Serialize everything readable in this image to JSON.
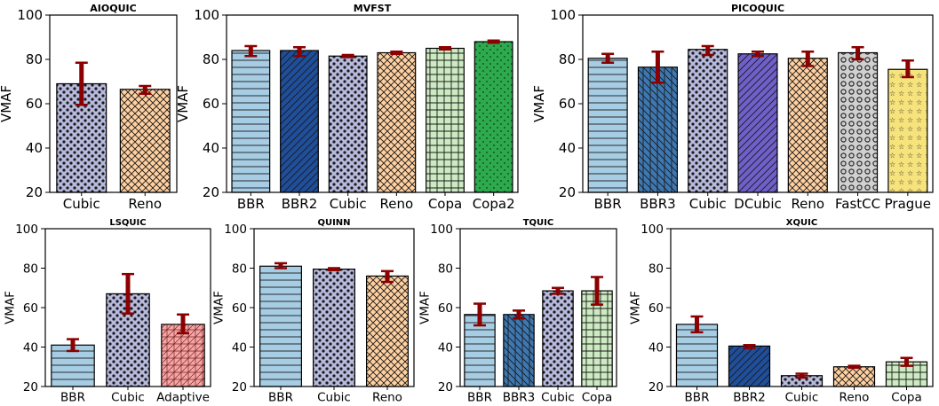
{
  "chart_data": [
    {
      "type": "bar",
      "title": "AIOQUIC",
      "ylabel": "VMAF",
      "ylim": [
        20,
        100
      ],
      "yticks": [
        20,
        40,
        60,
        80,
        100
      ],
      "grid": false,
      "categories": [
        "Cubic",
        "Reno"
      ],
      "values": [
        69,
        66.5
      ],
      "err_low": [
        59.5,
        64.5
      ],
      "err_high": [
        78.5,
        68
      ]
    },
    {
      "type": "bar",
      "title": "MVFST",
      "ylabel": "VMAF",
      "ylim": [
        20,
        100
      ],
      "yticks": [
        20,
        40,
        60,
        80,
        100
      ],
      "grid": false,
      "categories": [
        "BBR",
        "BBR2",
        "Cubic",
        "Reno",
        "Copa",
        "Copa2"
      ],
      "values": [
        84,
        84,
        81.5,
        83,
        85,
        88
      ],
      "err_low": [
        81.5,
        81.5,
        81,
        82.5,
        84.5,
        87.5
      ],
      "err_high": [
        86,
        85.5,
        82,
        83.5,
        85.5,
        88.5
      ]
    },
    {
      "type": "bar",
      "title": "PICOQUIC",
      "ylabel": "VMAF",
      "ylim": [
        20,
        100
      ],
      "yticks": [
        20,
        40,
        60,
        80,
        100
      ],
      "grid": false,
      "categories": [
        "BBR",
        "BBR3",
        "Cubic",
        "DCubic",
        "Reno",
        "FastCC",
        "Prague"
      ],
      "values": [
        80.5,
        76.5,
        84.5,
        82.5,
        80.5,
        83,
        75.5
      ],
      "err_low": [
        78.5,
        69.5,
        82,
        81.5,
        77,
        80,
        72
      ],
      "err_high": [
        82.5,
        83.5,
        86,
        83.5,
        83.5,
        85.5,
        79.5
      ]
    },
    {
      "type": "bar",
      "title": "LSQUIC",
      "ylabel": "VMAF",
      "ylim": [
        20,
        100
      ],
      "yticks": [
        20,
        40,
        60,
        80,
        100
      ],
      "grid": false,
      "categories": [
        "BBR",
        "Cubic",
        "Adaptive"
      ],
      "values": [
        41,
        67,
        51.5
      ],
      "err_low": [
        38,
        57,
        47
      ],
      "err_high": [
        44,
        77,
        56.5
      ]
    },
    {
      "type": "bar",
      "title": "QUINN",
      "ylabel": "VMAF",
      "ylim": [
        20,
        100
      ],
      "yticks": [
        20,
        40,
        60,
        80,
        100
      ],
      "grid": false,
      "categories": [
        "BBR",
        "Cubic",
        "Reno"
      ],
      "values": [
        81,
        79.5,
        76
      ],
      "err_low": [
        80,
        79,
        73
      ],
      "err_high": [
        82.5,
        80,
        78.5
      ]
    },
    {
      "type": "bar",
      "title": "TQUIC",
      "ylabel": "VMAF",
      "ylim": [
        20,
        100
      ],
      "yticks": [
        20,
        40,
        60,
        80,
        100
      ],
      "grid": false,
      "categories": [
        "BBR",
        "BBR3",
        "Cubic",
        "Copa"
      ],
      "values": [
        56.5,
        56.5,
        68.5,
        68.5
      ],
      "err_low": [
        51,
        54.5,
        67,
        61.5
      ],
      "err_high": [
        62,
        58.5,
        70,
        75.5
      ]
    },
    {
      "type": "bar",
      "title": "XQUIC",
      "ylabel": "VMAF",
      "ylim": [
        20,
        100
      ],
      "yticks": [
        20,
        40,
        60,
        80,
        100
      ],
      "grid": false,
      "categories": [
        "BBR",
        "BBR2",
        "Cubic",
        "Reno",
        "Copa"
      ],
      "values": [
        51.5,
        40.5,
        25.5,
        30,
        32.5
      ],
      "err_low": [
        47.5,
        39.5,
        24.5,
        29.5,
        30.5
      ],
      "err_high": [
        55.5,
        41,
        26.5,
        30.5,
        34.5
      ]
    }
  ],
  "styles": {
    "BBR": {
      "fill": "#a6cde3",
      "pattern": "hlines"
    },
    "BBR2": {
      "fill": "#1f4e9a",
      "pattern": "diag"
    },
    "BBR3": {
      "fill": "#3e78b2",
      "pattern": "vdiag"
    },
    "Cubic": {
      "fill": "#b7b9dd",
      "pattern": "dots"
    },
    "Reno": {
      "fill": "#ffd0a0",
      "pattern": "cross"
    },
    "Copa": {
      "fill": "#cdebc2",
      "pattern": "grid"
    },
    "Copa2": {
      "fill": "#2daa4e",
      "pattern": "smalldots"
    },
    "DCubic": {
      "fill": "#6f5fc9",
      "pattern": "diag"
    },
    "FastCC": {
      "fill": "#d0d0d0",
      "pattern": "rings"
    },
    "Prague": {
      "fill": "#f6e37c",
      "pattern": "stars"
    },
    "Adaptive": {
      "fill": "#f4a6a6",
      "pattern": "gridcross"
    }
  },
  "error_bar_color": "#8b0000"
}
